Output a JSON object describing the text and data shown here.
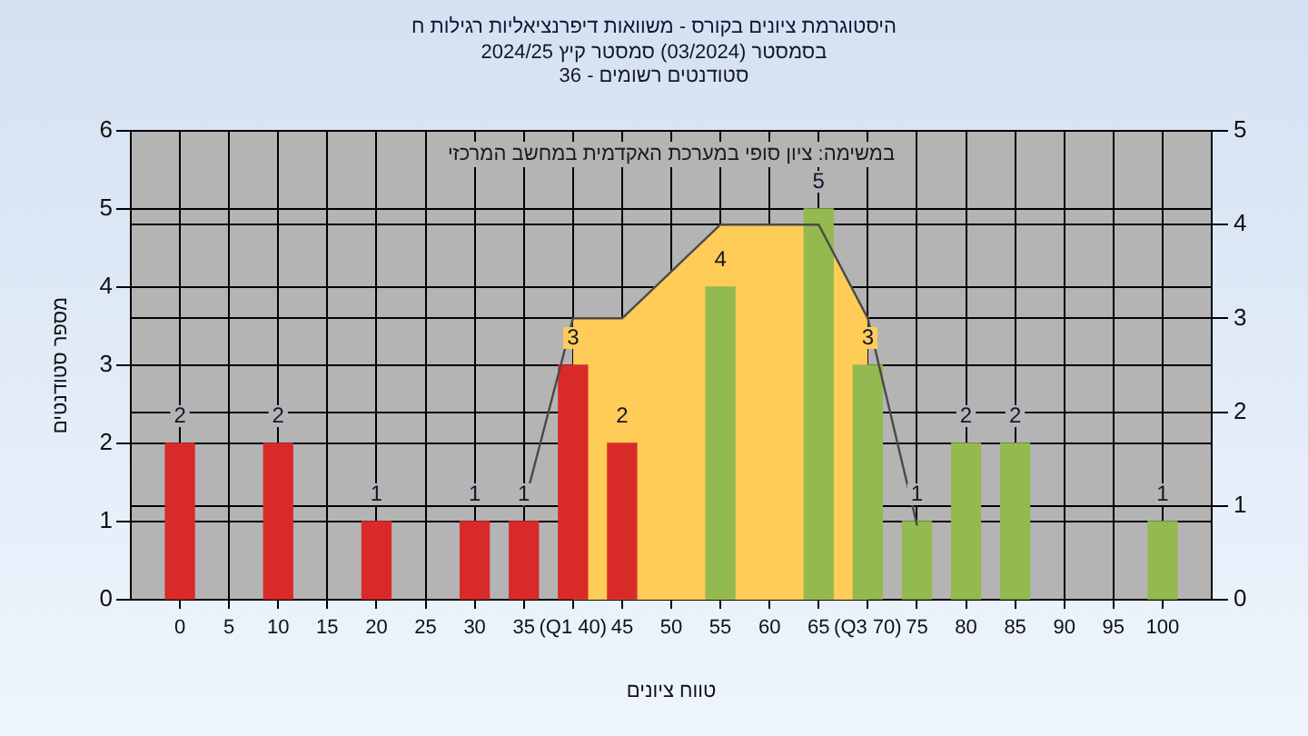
{
  "chart_data": {
    "type": "bar",
    "title": "היסטוגרמת ציונים בקורס - משוואות דיפרנציאליות רגילות ח",
    "subtitle": "בסמסטר (03/2024) סמסטר קיץ 2024/25\nסטודנטים רשומים - 36",
    "xlabel": "טווח ציונים",
    "ylabel": "מספר סטודנטים",
    "annotations": [
      "במשימה: ציון סופי במערכת האקדמית במחשב המרכזי"
    ],
    "series": [
      {
        "type": "area",
        "axis": "y2",
        "color": "#ffcc57",
        "x": [
          40,
          45,
          50,
          55,
          60,
          65,
          70
        ],
        "values": [
          3,
          3,
          3.5,
          4,
          4,
          4,
          3
        ]
      },
      {
        "type": "line",
        "axis": "y2",
        "color": "#4a4a4a",
        "x": [
          35,
          40,
          45,
          50,
          55,
          60,
          65,
          70,
          75
        ],
        "values": [
          1,
          3,
          3,
          3.5,
          4,
          4,
          4,
          3,
          0.8
        ]
      },
      {
        "x": [
          0,
          10,
          20,
          30,
          35,
          40,
          45,
          55,
          65,
          70,
          75,
          80,
          85,
          100
        ],
        "values": [
          2,
          2,
          1,
          1,
          1,
          3,
          2,
          4,
          5,
          3,
          1,
          2,
          2,
          1
        ],
        "colors": [
          "#d92a2a",
          "#d92a2a",
          "#d92a2a",
          "#d92a2a",
          "#d92a2a",
          "#d92a2a",
          "#d92a2a",
          "#94b94e",
          "#94b94e",
          "#94b94e",
          "#94b94e",
          "#94b94e",
          "#94b94e",
          "#94b94e"
        ],
        "value_labels": [
          "2",
          "2",
          "1",
          "1",
          "1",
          "3",
          "2",
          "4",
          "5",
          "3",
          "1",
          "2",
          "2",
          "1"
        ]
      }
    ],
    "xlim": [
      -5,
      105
    ],
    "xticks": [
      0,
      5,
      10,
      15,
      20,
      25,
      30,
      35,
      {
        "value": 40,
        "label": "(Q1 40)"
      },
      45,
      50,
      55,
      60,
      65,
      {
        "value": 70,
        "label": "(Q3 70)"
      },
      75,
      80,
      85,
      90,
      95,
      100
    ],
    "ylim": [
      0,
      6
    ],
    "yticks": [
      0,
      1,
      2,
      3,
      4,
      5,
      6
    ],
    "y2lim": [
      0,
      5
    ],
    "y2ticks": [
      0,
      1,
      2,
      3,
      4,
      5
    ],
    "grid": true
  }
}
